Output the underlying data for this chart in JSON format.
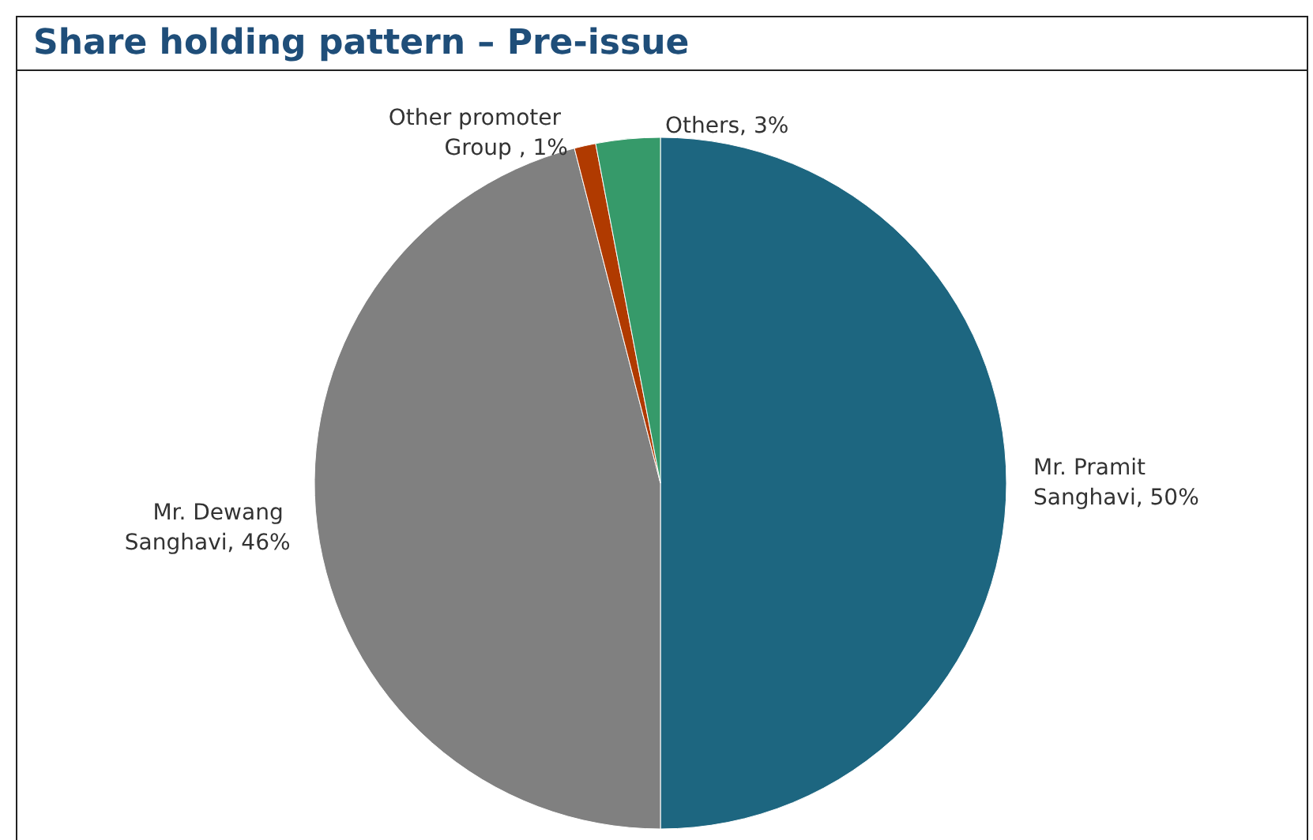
{
  "chart_data": {
    "type": "pie",
    "title": "Share holding pattern – Pre-issue",
    "categories": [
      "Mr. Pramit Sanghavi",
      "Mr. Dewang Sanghavi",
      "Other promoter Group ",
      "Others"
    ],
    "values": [
      50,
      46,
      1,
      3
    ],
    "value_labels": [
      "50%",
      "46%",
      "1%",
      "3%"
    ],
    "colors": [
      "#1d6680",
      "#808080",
      "#b03a00",
      "#369a6a"
    ],
    "legend": false
  }
}
